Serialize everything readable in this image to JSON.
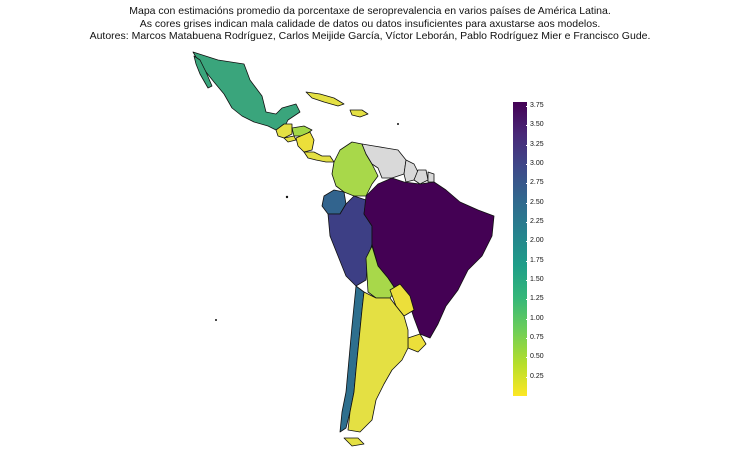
{
  "title": {
    "line1": "Mapa con estimacións promedio da porcentaxe de seroprevalencia en varios países de América Latina.",
    "line2": "As cores grises indican mala calidade de datos ou datos insuficientes para axustarse aos modelos.",
    "line3": "Autores: Marcos Matabuena Rodríguez, Carlos Meijide García, Víctor Leborán, Pablo Rodríguez Mier e Francisco Gude."
  },
  "legend": {
    "colorscale": "viridis-reversed",
    "gradient_stops": [
      "#fde725",
      "#b5de2b",
      "#6ece58",
      "#35b779",
      "#1f9e89",
      "#26828e",
      "#31688e",
      "#3e4989",
      "#482878",
      "#440154"
    ],
    "range": [
      0,
      3.8
    ],
    "ticks": [
      "3.75",
      "3.50",
      "3.25",
      "3.00",
      "2.75",
      "2.50",
      "2.25",
      "2.00",
      "1.75",
      "1.50",
      "1.25",
      "1.00",
      "0.75",
      "0.50",
      "0.25"
    ]
  },
  "countries": [
    {
      "name": "Mexico",
      "value": 1.5,
      "color": "#3aa57c"
    },
    {
      "name": "Guatemala",
      "value": 0.5,
      "color": "#e4e043"
    },
    {
      "name": "Belize",
      "value": 0.5,
      "color": "#e4e043"
    },
    {
      "name": "Honduras",
      "value": 1.0,
      "color": "#a3d747"
    },
    {
      "name": "El Salvador",
      "value": 0.4,
      "color": "#e4e043"
    },
    {
      "name": "Nicaragua",
      "value": 0.3,
      "color": "#ecdf3a"
    },
    {
      "name": "Costa Rica",
      "value": 0.3,
      "color": "#ecdf3a"
    },
    {
      "name": "Panama",
      "value": 0.4,
      "color": "#e4e043"
    },
    {
      "name": "Cuba",
      "value": 0.4,
      "color": "#e4e043"
    },
    {
      "name": "Dominican Republic",
      "value": 0.4,
      "color": "#e4e043"
    },
    {
      "name": "Colombia",
      "value": 0.9,
      "color": "#a8d84a"
    },
    {
      "name": "Venezuela",
      "value": null,
      "color": "#d9d9d9"
    },
    {
      "name": "Guyana",
      "value": null,
      "color": "#d9d9d9"
    },
    {
      "name": "Suriname",
      "value": null,
      "color": "#d9d9d9"
    },
    {
      "name": "French Guiana",
      "value": null,
      "color": "#d9d9d9"
    },
    {
      "name": "Ecuador",
      "value": 2.6,
      "color": "#32648e"
    },
    {
      "name": "Peru",
      "value": 3.2,
      "color": "#3d3f85"
    },
    {
      "name": "Brazil",
      "value": 3.8,
      "color": "#440154"
    },
    {
      "name": "Bolivia",
      "value": 0.9,
      "color": "#a8d84a"
    },
    {
      "name": "Paraguay",
      "value": 0.3,
      "color": "#ecdf3a"
    },
    {
      "name": "Chile",
      "value": 2.3,
      "color": "#2e6f8e"
    },
    {
      "name": "Argentina",
      "value": 0.4,
      "color": "#e4e043"
    },
    {
      "name": "Uruguay",
      "value": 0.3,
      "color": "#ecdf3a"
    }
  ]
}
